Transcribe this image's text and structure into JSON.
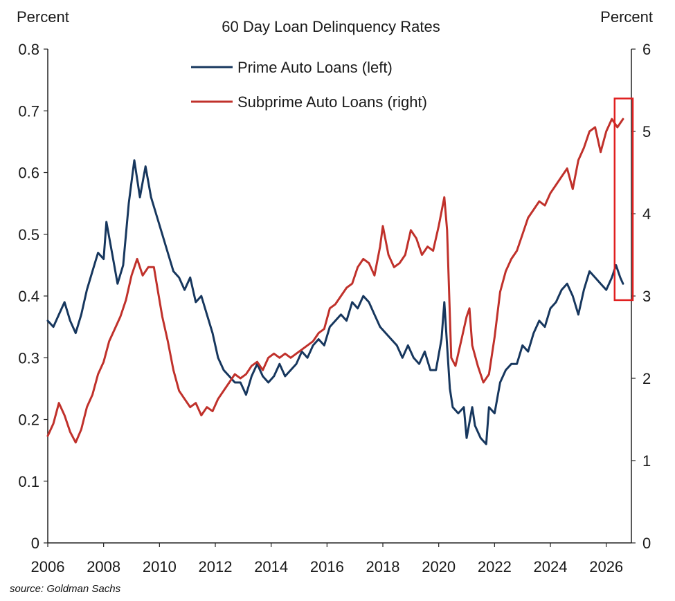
{
  "chart_data": {
    "type": "line",
    "title": "60 Day Loan Delinquency Rates",
    "left_axis_label": "Percent",
    "right_axis_label": "Percent",
    "source": "source: Goldman Sachs",
    "xlim": [
      2006,
      2026.9
    ],
    "x_ticks": [
      "2006",
      "2008",
      "2010",
      "2012",
      "2014",
      "2016",
      "2018",
      "2020",
      "2022",
      "2024",
      "2026"
    ],
    "y_left": {
      "range": [
        0,
        0.8
      ],
      "ticks": [
        "0",
        "0.1",
        "0.2",
        "0.3",
        "0.4",
        "0.5",
        "0.6",
        "0.7",
        "0.8"
      ]
    },
    "y_right": {
      "range": [
        0,
        6
      ],
      "ticks": [
        "0",
        "1",
        "2",
        "3",
        "4",
        "5",
        "6"
      ]
    },
    "legend_position": "top-center",
    "grid": false,
    "series": [
      {
        "name": "Prime Auto Loans (left)",
        "axis": "left",
        "color": "#17375e",
        "points": [
          [
            2006.0,
            0.36
          ],
          [
            2006.2,
            0.35
          ],
          [
            2006.4,
            0.37
          ],
          [
            2006.6,
            0.39
          ],
          [
            2006.8,
            0.36
          ],
          [
            2007.0,
            0.34
          ],
          [
            2007.2,
            0.37
          ],
          [
            2007.4,
            0.41
          ],
          [
            2007.6,
            0.44
          ],
          [
            2007.8,
            0.47
          ],
          [
            2008.0,
            0.46
          ],
          [
            2008.1,
            0.52
          ],
          [
            2008.3,
            0.47
          ],
          [
            2008.5,
            0.42
          ],
          [
            2008.7,
            0.45
          ],
          [
            2008.9,
            0.55
          ],
          [
            2009.1,
            0.62
          ],
          [
            2009.3,
            0.56
          ],
          [
            2009.5,
            0.61
          ],
          [
            2009.7,
            0.56
          ],
          [
            2009.9,
            0.53
          ],
          [
            2010.1,
            0.5
          ],
          [
            2010.3,
            0.47
          ],
          [
            2010.5,
            0.44
          ],
          [
            2010.7,
            0.43
          ],
          [
            2010.9,
            0.41
          ],
          [
            2011.1,
            0.43
          ],
          [
            2011.3,
            0.39
          ],
          [
            2011.5,
            0.4
          ],
          [
            2011.7,
            0.37
          ],
          [
            2011.9,
            0.34
          ],
          [
            2012.1,
            0.3
          ],
          [
            2012.3,
            0.28
          ],
          [
            2012.5,
            0.27
          ],
          [
            2012.7,
            0.26
          ],
          [
            2012.9,
            0.26
          ],
          [
            2013.1,
            0.24
          ],
          [
            2013.3,
            0.27
          ],
          [
            2013.5,
            0.29
          ],
          [
            2013.7,
            0.27
          ],
          [
            2013.9,
            0.26
          ],
          [
            2014.1,
            0.27
          ],
          [
            2014.3,
            0.29
          ],
          [
            2014.5,
            0.27
          ],
          [
            2014.7,
            0.28
          ],
          [
            2014.9,
            0.29
          ],
          [
            2015.1,
            0.31
          ],
          [
            2015.3,
            0.3
          ],
          [
            2015.5,
            0.32
          ],
          [
            2015.7,
            0.33
          ],
          [
            2015.9,
            0.32
          ],
          [
            2016.1,
            0.35
          ],
          [
            2016.3,
            0.36
          ],
          [
            2016.5,
            0.37
          ],
          [
            2016.7,
            0.36
          ],
          [
            2016.9,
            0.39
          ],
          [
            2017.1,
            0.38
          ],
          [
            2017.3,
            0.4
          ],
          [
            2017.5,
            0.39
          ],
          [
            2017.7,
            0.37
          ],
          [
            2017.9,
            0.35
          ],
          [
            2018.1,
            0.34
          ],
          [
            2018.3,
            0.33
          ],
          [
            2018.5,
            0.32
          ],
          [
            2018.7,
            0.3
          ],
          [
            2018.9,
            0.32
          ],
          [
            2019.1,
            0.3
          ],
          [
            2019.3,
            0.29
          ],
          [
            2019.5,
            0.31
          ],
          [
            2019.7,
            0.28
          ],
          [
            2019.9,
            0.28
          ],
          [
            2020.1,
            0.33
          ],
          [
            2020.2,
            0.39
          ],
          [
            2020.4,
            0.25
          ],
          [
            2020.5,
            0.22
          ],
          [
            2020.7,
            0.21
          ],
          [
            2020.9,
            0.22
          ],
          [
            2021.0,
            0.17
          ],
          [
            2021.2,
            0.22
          ],
          [
            2021.3,
            0.19
          ],
          [
            2021.5,
            0.17
          ],
          [
            2021.7,
            0.16
          ],
          [
            2021.8,
            0.22
          ],
          [
            2022.0,
            0.21
          ],
          [
            2022.2,
            0.26
          ],
          [
            2022.4,
            0.28
          ],
          [
            2022.6,
            0.29
          ],
          [
            2022.8,
            0.29
          ],
          [
            2023.0,
            0.32
          ],
          [
            2023.2,
            0.31
          ],
          [
            2023.4,
            0.34
          ],
          [
            2023.6,
            0.36
          ],
          [
            2023.8,
            0.35
          ],
          [
            2024.0,
            0.38
          ],
          [
            2024.2,
            0.39
          ],
          [
            2024.4,
            0.41
          ],
          [
            2024.6,
            0.42
          ],
          [
            2024.8,
            0.4
          ],
          [
            2025.0,
            0.37
          ],
          [
            2025.2,
            0.41
          ],
          [
            2025.4,
            0.44
          ],
          [
            2025.6,
            0.43
          ],
          [
            2025.8,
            0.42
          ],
          [
            2026.0,
            0.41
          ],
          [
            2026.2,
            0.43
          ],
          [
            2026.35,
            0.45
          ],
          [
            2026.5,
            0.43
          ],
          [
            2026.6,
            0.42
          ]
        ]
      },
      {
        "name": "Subprime Auto Loans (right)",
        "axis": "right",
        "color": "#c0312b",
        "points": [
          [
            2006.0,
            1.3
          ],
          [
            2006.2,
            1.45
          ],
          [
            2006.4,
            1.7
          ],
          [
            2006.6,
            1.55
          ],
          [
            2006.8,
            1.35
          ],
          [
            2007.0,
            1.22
          ],
          [
            2007.2,
            1.38
          ],
          [
            2007.4,
            1.65
          ],
          [
            2007.6,
            1.8
          ],
          [
            2007.8,
            2.05
          ],
          [
            2008.0,
            2.2
          ],
          [
            2008.2,
            2.45
          ],
          [
            2008.4,
            2.6
          ],
          [
            2008.6,
            2.75
          ],
          [
            2008.8,
            2.95
          ],
          [
            2009.0,
            3.25
          ],
          [
            2009.2,
            3.45
          ],
          [
            2009.4,
            3.25
          ],
          [
            2009.6,
            3.35
          ],
          [
            2009.8,
            3.35
          ],
          [
            2009.95,
            3.05
          ],
          [
            2010.1,
            2.75
          ],
          [
            2010.3,
            2.45
          ],
          [
            2010.5,
            2.1
          ],
          [
            2010.7,
            1.85
          ],
          [
            2010.9,
            1.75
          ],
          [
            2011.1,
            1.65
          ],
          [
            2011.3,
            1.7
          ],
          [
            2011.5,
            1.55
          ],
          [
            2011.7,
            1.65
          ],
          [
            2011.9,
            1.6
          ],
          [
            2012.1,
            1.75
          ],
          [
            2012.3,
            1.85
          ],
          [
            2012.5,
            1.95
          ],
          [
            2012.7,
            2.05
          ],
          [
            2012.9,
            2.0
          ],
          [
            2013.1,
            2.05
          ],
          [
            2013.3,
            2.15
          ],
          [
            2013.5,
            2.2
          ],
          [
            2013.7,
            2.1
          ],
          [
            2013.9,
            2.25
          ],
          [
            2014.1,
            2.3
          ],
          [
            2014.3,
            2.25
          ],
          [
            2014.5,
            2.3
          ],
          [
            2014.7,
            2.25
          ],
          [
            2014.9,
            2.3
          ],
          [
            2015.1,
            2.35
          ],
          [
            2015.3,
            2.4
          ],
          [
            2015.5,
            2.45
          ],
          [
            2015.7,
            2.55
          ],
          [
            2015.9,
            2.6
          ],
          [
            2016.1,
            2.85
          ],
          [
            2016.3,
            2.9
          ],
          [
            2016.5,
            3.0
          ],
          [
            2016.7,
            3.1
          ],
          [
            2016.9,
            3.15
          ],
          [
            2017.1,
            3.35
          ],
          [
            2017.3,
            3.45
          ],
          [
            2017.5,
            3.4
          ],
          [
            2017.7,
            3.25
          ],
          [
            2017.9,
            3.6
          ],
          [
            2018.0,
            3.85
          ],
          [
            2018.2,
            3.5
          ],
          [
            2018.4,
            3.35
          ],
          [
            2018.6,
            3.4
          ],
          [
            2018.8,
            3.5
          ],
          [
            2019.0,
            3.8
          ],
          [
            2019.2,
            3.7
          ],
          [
            2019.4,
            3.5
          ],
          [
            2019.6,
            3.6
          ],
          [
            2019.8,
            3.55
          ],
          [
            2020.0,
            3.85
          ],
          [
            2020.2,
            4.2
          ],
          [
            2020.3,
            3.8
          ],
          [
            2020.45,
            2.25
          ],
          [
            2020.6,
            2.15
          ],
          [
            2020.8,
            2.45
          ],
          [
            2021.0,
            2.75
          ],
          [
            2021.1,
            2.85
          ],
          [
            2021.2,
            2.4
          ],
          [
            2021.4,
            2.15
          ],
          [
            2021.6,
            1.95
          ],
          [
            2021.8,
            2.05
          ],
          [
            2022.0,
            2.5
          ],
          [
            2022.2,
            3.05
          ],
          [
            2022.4,
            3.3
          ],
          [
            2022.6,
            3.45
          ],
          [
            2022.8,
            3.55
          ],
          [
            2023.0,
            3.75
          ],
          [
            2023.2,
            3.95
          ],
          [
            2023.4,
            4.05
          ],
          [
            2023.6,
            4.15
          ],
          [
            2023.8,
            4.1
          ],
          [
            2024.0,
            4.25
          ],
          [
            2024.2,
            4.35
          ],
          [
            2024.4,
            4.45
          ],
          [
            2024.6,
            4.55
          ],
          [
            2024.8,
            4.3
          ],
          [
            2025.0,
            4.65
          ],
          [
            2025.2,
            4.8
          ],
          [
            2025.4,
            5.0
          ],
          [
            2025.6,
            5.05
          ],
          [
            2025.8,
            4.75
          ],
          [
            2026.0,
            5.0
          ],
          [
            2026.2,
            5.15
          ],
          [
            2026.4,
            5.05
          ],
          [
            2026.6,
            5.15
          ]
        ]
      }
    ],
    "highlight_box": {
      "x_range": [
        2026.3,
        2026.95
      ],
      "y_right_range": [
        2.95,
        5.4
      ],
      "color": "#e02020"
    }
  }
}
